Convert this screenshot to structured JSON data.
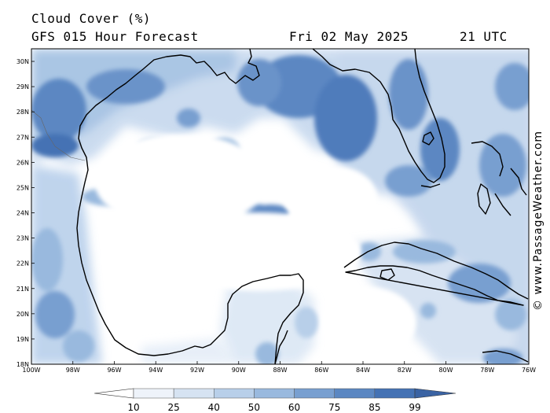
{
  "header": {
    "title": "Cloud Cover (%)",
    "subtitle": "GFS 015 Hour Forecast",
    "date": "Fri 02 May 2025",
    "time": "21 UTC"
  },
  "credit": "© www.PassageWeather.com",
  "map": {
    "lat_labels": [
      "30N",
      "29N",
      "28N",
      "27N",
      "26N",
      "25N",
      "24N",
      "23N",
      "22N",
      "21N",
      "20N",
      "19N",
      "18N"
    ],
    "lon_labels": [
      "100W",
      "98W",
      "96W",
      "94W",
      "92W",
      "90W",
      "88W",
      "86W",
      "84W",
      "82W",
      "80W",
      "78W",
      "76W"
    ],
    "lat_range": [
      18,
      30.5
    ],
    "lon_range": [
      -100,
      -76
    ],
    "land_outline_color": "#000000",
    "background_color": "#ffffff"
  },
  "colorbar": {
    "labels": [
      "10",
      "25",
      "40",
      "50",
      "60",
      "75",
      "85",
      "99"
    ],
    "colors": [
      "#ffffff",
      "#eef3fa",
      "#d6e3f2",
      "#b8cfe9",
      "#99b9de",
      "#789fd0",
      "#5b87c2",
      "#4472b4",
      "#3a63a3"
    ]
  }
}
